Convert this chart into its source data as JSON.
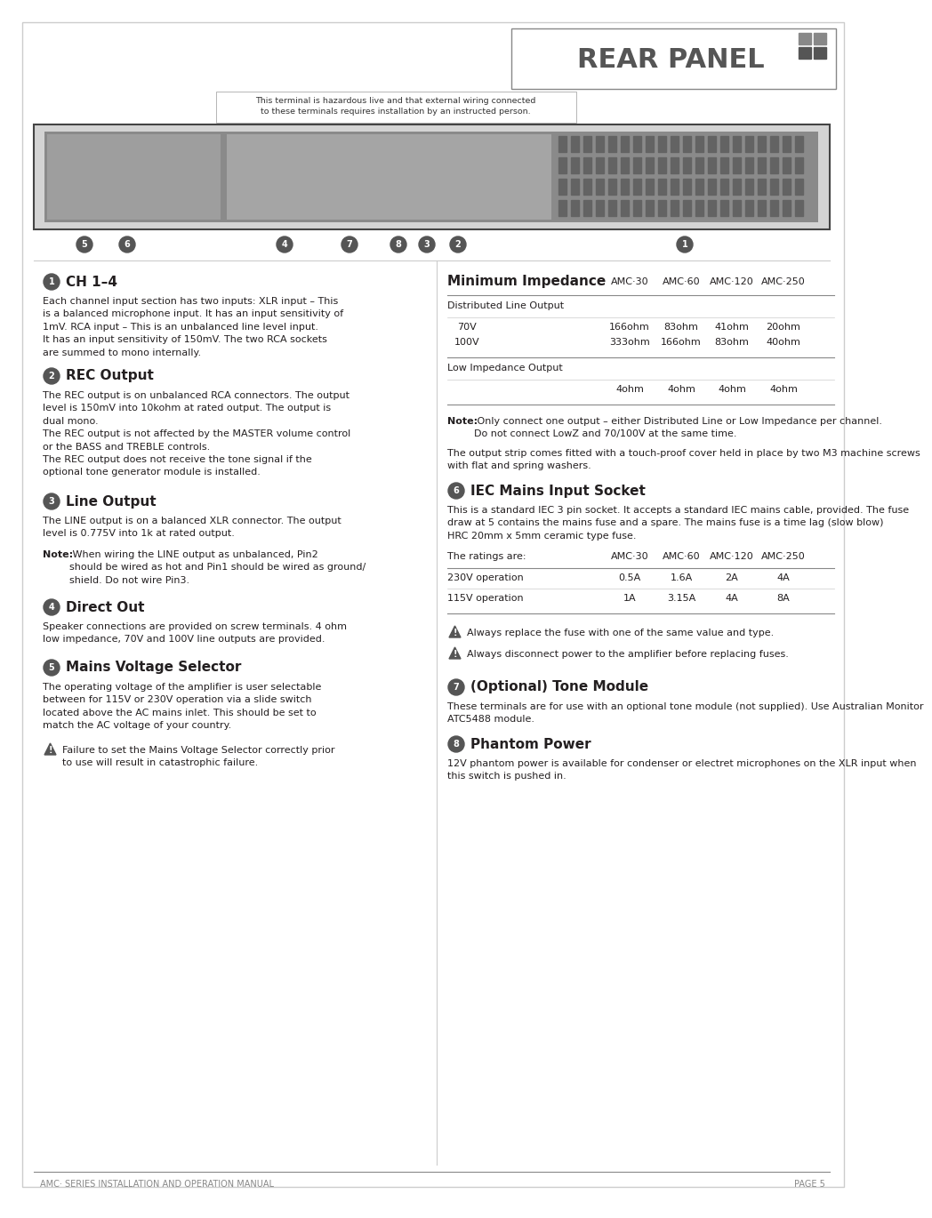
{
  "title": "REAR PANEL",
  "footer_left": "AMC· SERIES INSTALLATION AND OPERATION MANUAL",
  "footer_right": "PAGE 5",
  "header_note": "This terminal is hazardous live and that external wiring connected\nto these terminals requires installation by an instructed person.",
  "section1_num": "1",
  "section1_title": "CH 1–4",
  "section1_text": "Each channel input section has two inputs: XLR input – This\nis a balanced microphone input. It has an input sensitivity of\n1mV. RCA input – This is an unbalanced line level input.\nIt has an input sensitivity of 150mV. The two RCA sockets\nare summed to mono internally.",
  "section2_num": "2",
  "section2_title": "REC Output",
  "section2_text": "The REC output is on unbalanced RCA connectors. The output\nlevel is 150mV into 10kohm at rated output. The output is\ndual mono.\nThe REC output is not affected by the MASTER volume control\nor the BASS and TREBLE controls.\nThe REC output does not receive the tone signal if the\noptional tone generator module is installed.",
  "section3_num": "3",
  "section3_title": "Line Output",
  "section3_text": "The LINE output is on a balanced XLR connector. The output\nlevel is 0.775V into 1k at rated output.",
  "section3_note_bold": "Note:",
  "section3_note": " When wiring the LINE output as unbalanced, Pin2\nshould be wired as hot and Pin1 should be wired as ground/\nshield. Do not wire Pin3.",
  "section4_num": "4",
  "section4_title": "Direct Out",
  "section4_text": "Speaker connections are provided on screw terminals. 4 ohm\nlow impedance, 70V and 100V line outputs are provided.",
  "section5_num": "5",
  "section5_title": "Mains Voltage Selector",
  "section5_text": "The operating voltage of the amplifier is user selectable\nbetween for 115V or 230V operation via a slide switch\nlocated above the AC mains inlet. This should be set to\nmatch the AC voltage of your country.",
  "section5_warning": "Failure to set the Mains Voltage Selector correctly prior\nto use will result in catastrophic failure.",
  "table_title": "Minimum Impedance",
  "table_col1": "AMC·30",
  "table_col2": "AMC·60",
  "table_col3": "AMC·120",
  "table_col4": "AMC·250",
  "table_row1": "Distributed Line Output",
  "table_sub1": "70V",
  "table_sub2": "100V",
  "table_val_70v": [
    "166ohm",
    "83ohm",
    "41ohm",
    "20ohm"
  ],
  "table_val_100v": [
    "333ohm",
    "166ohm",
    "83ohm",
    "40ohm"
  ],
  "table_row2": "Low Impedance Output",
  "table_val_low": [
    "4ohm",
    "4ohm",
    "4ohm",
    "4ohm"
  ],
  "note_bold": "Note:",
  "note_text": " Only connect one output – either Distributed Line or Low Impedance per channel.\nDo not connect LowZ and 70/100V at the same time.",
  "note_text2": "The output strip comes fitted with a touch-proof cover held in place by two M3 machine screws\nwith flat and spring washers.",
  "section6_num": "6",
  "section6_title": "IEC Mains Input Socket",
  "section6_text": "This is a standard IEC 3 pin socket. It accepts a standard IEC mains cable, provided. The fuse\ndraw at 5 contains the mains fuse and a spare. The mains fuse is a time lag (slow blow)\nHRC 20mm x 5mm ceramic type fuse.",
  "table2_row0": "The ratings are:",
  "table2_col1": "AMC·30",
  "table2_col2": "AMC·60",
  "table2_col3": "AMC·120",
  "table2_col4": "AMC·250",
  "table2_row1": "230V operation",
  "table2_val1": [
    "0.5A",
    "1.6A",
    "2A",
    "4A"
  ],
  "table2_row2": "115V operation",
  "table2_val2": [
    "1A",
    "3.15A",
    "4A",
    "8A"
  ],
  "warn2_text": "Always replace the fuse with one of the same value and type.",
  "warn3_text": "Always disconnect power to the amplifier before replacing fuses.",
  "section7_num": "7",
  "section7_title": "(Optional) Tone Module",
  "section7_text": "These terminals are for use with an optional tone module (not supplied). Use Australian Monitor\nATC5488 module.",
  "section8_num": "8",
  "section8_title": "Phantom Power",
  "section8_text": "12V phantom power is available for condenser or electret microphones on the XLR input when\nthis switch is pushed in.",
  "bg_color": "#ffffff",
  "text_color": "#231f20",
  "light_gray": "#888888",
  "circle_color": "#555555",
  "warn_triangle_color": "#555555"
}
